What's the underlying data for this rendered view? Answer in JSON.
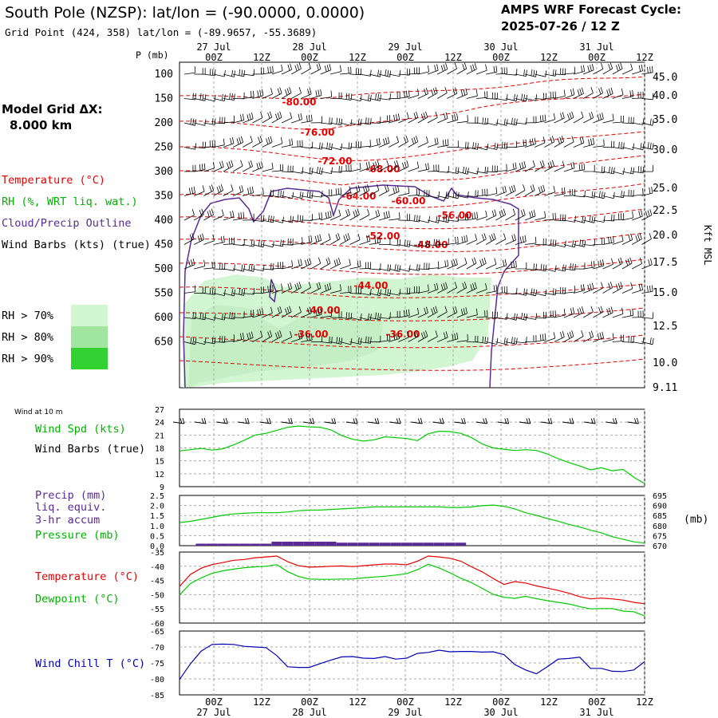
{
  "header": {
    "title": "South Pole (NZSP):  lat/lon = (-90.0000, 0.0000)",
    "subtitle": "Grid Point (424, 358) lat/lon = (-89.9657, -55.3689)",
    "cycle_label": "AMPS WRF Forecast Cycle:",
    "cycle_value": "2025-07-26 / 12  Z"
  },
  "left": {
    "model_grid": "Model Grid ΔX:",
    "grid_spacing": "8.000 km",
    "legend_temperature": "Temperature (°C)",
    "legend_rh": "RH (%, WRT liq. wat.)",
    "legend_cloud": "Cloud/Precip Outline",
    "legend_wind": "Wind Barbs (kts) (true)",
    "rh70": "RH > 70%",
    "rh80": "RH > 80%",
    "rh90": "RH > 90%",
    "wind_at": "Wind at 10 m",
    "wind_spd": "Wind Spd (kts)",
    "wind_barbs": "Wind Barbs (true)",
    "precip1": "Precip (mm)",
    "precip2": "liq. equiv.",
    "precip3": "3-hr accum",
    "pressure": "Pressure (mb)",
    "temp2": "Temperature (°C)",
    "dew": "Dewpoint (°C)",
    "chill": "Wind Chill T (°C)"
  },
  "colors": {
    "red": "#e60000",
    "green": "#00cc00",
    "purple": "#5a2a96",
    "blue": "#0000b4",
    "rh70": "#d2f5d2",
    "rh80": "#a0e6a0",
    "rh90": "#32d232"
  },
  "time_axis": {
    "hour_labels": [
      "00Z",
      "12Z",
      "00Z",
      "12Z",
      "00Z",
      "12Z",
      "00Z",
      "12Z",
      "00Z",
      "12Z"
    ],
    "date_labels_top": [
      "27 Jul",
      "28 Jul",
      "29 Jul",
      "30 Jul",
      "31 Jul"
    ],
    "date_labels_bottom": [
      "27 Jul",
      "28 Jul",
      "29 Jul",
      "30 Jul",
      "31 Jul"
    ]
  },
  "chart_data": [
    {
      "type": "heatmap",
      "ylabel": "P (mb)",
      "y2label": "Kft MSL",
      "pressure_ticks": [
        "100",
        "150",
        "200",
        "250",
        "300",
        "350",
        "400",
        "450",
        "500",
        "550",
        "600",
        "650"
      ],
      "height_ticks": [
        "45.0",
        "40.0",
        "35.0",
        "30.0",
        "25.0",
        "22.5",
        "20.0",
        "17.5",
        "15.0",
        "12.5",
        "10.0",
        "9.11"
      ],
      "temperature_labels": [
        "-80.00",
        "-76.00",
        "-72.00",
        "-68.00",
        "-64.00",
        "-60.00",
        "-56.00",
        "-52.00",
        "-48.00",
        "-44.00",
        "-40.00",
        "-36.00",
        "-36.00"
      ]
    },
    {
      "type": "line",
      "series": [
        {
          "name": "Wind Spd (kts)",
          "values": [
            17.3,
            17.6,
            17.9,
            17.5,
            17.8,
            18.7,
            19.8,
            21.0,
            21.4,
            22.1,
            22.8,
            23.1,
            22.9,
            22.8,
            22.2,
            20.9,
            20.0,
            19.6,
            19.9,
            20.6,
            20.4,
            20.2,
            19.7,
            21.3,
            21.9,
            21.8,
            21.4,
            20.4,
            18.9,
            18.0,
            17.7,
            17.4,
            17.6,
            17.4,
            16.6,
            15.5,
            14.6,
            13.8,
            12.9,
            13.4,
            12.7,
            13.0,
            11.2,
            9.7
          ]
        }
      ],
      "y_ticks": [
        "27",
        "24",
        "21",
        "18",
        "15",
        "12",
        "9"
      ],
      "ylim": [
        9,
        27
      ]
    },
    {
      "type": "bar",
      "series": [
        {
          "name": "Precip (mm)",
          "values": [
            0,
            0,
            0.1,
            0.1,
            0.1,
            0.1,
            0.1,
            0.1,
            0.1,
            0.2,
            0.2,
            0.2,
            0.2,
            0.2,
            0.2,
            0.15,
            0.15,
            0.15,
            0.15,
            0.15,
            0.15,
            0.15,
            0.15,
            0.15,
            0.15,
            0.15,
            0.15,
            0,
            0,
            0,
            0,
            0,
            0,
            0,
            0,
            0,
            0,
            0,
            0,
            0,
            0,
            0,
            0,
            0
          ]
        },
        {
          "name": "Pressure (mb)",
          "values": [
            681.5,
            682.1,
            683.1,
            684.1,
            685.1,
            685.8,
            686.1,
            686.4,
            686.4,
            686.4,
            686.8,
            687.4,
            687.7,
            687.7,
            688.0,
            688.3,
            688.6,
            688.9,
            689.3,
            689.3,
            689.3,
            689.3,
            689.3,
            689.3,
            689.3,
            689.0,
            689.0,
            689.3,
            689.9,
            690.2,
            689.6,
            688.3,
            686.4,
            685.1,
            683.5,
            682.2,
            680.6,
            679.3,
            677.7,
            676.4,
            674.5,
            673.2,
            671.9,
            671.3
          ]
        }
      ],
      "y_ticks": [
        "2.5",
        "2.0",
        "1.5",
        "1.0",
        "0.5",
        "0.0"
      ],
      "y2_ticks": [
        "695",
        "690",
        "685",
        "680",
        "675",
        "670"
      ],
      "y2label": "(mb)",
      "ylim": [
        0,
        2.5
      ],
      "y2lim": [
        670,
        695
      ]
    },
    {
      "type": "line",
      "series": [
        {
          "name": "Temperature (°C)",
          "values": [
            -47.1,
            -42.9,
            -40.7,
            -39.4,
            -38.7,
            -37.9,
            -37.6,
            -37.0,
            -36.7,
            -36.4,
            -38.4,
            -39.8,
            -40.3,
            -40.2,
            -40.0,
            -39.9,
            -40.1,
            -39.8,
            -39.5,
            -39.2,
            -39.2,
            -39.5,
            -38.2,
            -36.4,
            -36.7,
            -37.2,
            -38.2,
            -40.2,
            -42.0,
            -44.3,
            -46.4,
            -45.4,
            -45.9,
            -46.9,
            -47.7,
            -48.5,
            -49.5,
            -50.7,
            -51.5,
            -51.2,
            -51.5,
            -51.9,
            -52.7,
            -53.2
          ]
        },
        {
          "name": "Dewpoint (°C)",
          "values": [
            -50.1,
            -46.1,
            -44.1,
            -42.5,
            -41.6,
            -41.0,
            -40.5,
            -40.2,
            -40.0,
            -39.4,
            -41.9,
            -43.6,
            -44.5,
            -44.6,
            -44.6,
            -44.5,
            -44.5,
            -44.1,
            -43.8,
            -43.5,
            -43.1,
            -42.6,
            -41.2,
            -39.3,
            -40.6,
            -42.3,
            -44.2,
            -45.8,
            -47.8,
            -49.9,
            -50.9,
            -51.3,
            -50.6,
            -51.4,
            -52.1,
            -52.7,
            -53.3,
            -54.2,
            -55.0,
            -54.9,
            -54.9,
            -55.8,
            -56.0,
            -57.5
          ]
        }
      ],
      "y_ticks": [
        "-35",
        "-40",
        "-45",
        "-50",
        "-55",
        "-60"
      ],
      "ylim": [
        -60,
        -35
      ]
    },
    {
      "type": "line",
      "series": [
        {
          "name": "Wind Chill T (°C)",
          "values": [
            -80.2,
            -75.3,
            -71.3,
            -69.2,
            -69.1,
            -69.2,
            -69.8,
            -70.0,
            -70.2,
            -72.7,
            -76.2,
            -76.4,
            -76.4,
            -75.2,
            -74.1,
            -73.1,
            -73.0,
            -73.5,
            -73.6,
            -73.0,
            -73.8,
            -73.5,
            -72.0,
            -71.7,
            -71.0,
            -71.5,
            -71.4,
            -71.4,
            -71.6,
            -71.5,
            -72.4,
            -75.5,
            -77.2,
            -78.4,
            -76.2,
            -73.8,
            -73.6,
            -73.2,
            -76.7,
            -76.7,
            -77.6,
            -77.7,
            -77.2,
            -74.6
          ]
        }
      ],
      "y_ticks": [
        "-65",
        "-70",
        "-75",
        "-80",
        "-85"
      ],
      "ylim": [
        -85,
        -65
      ]
    }
  ]
}
